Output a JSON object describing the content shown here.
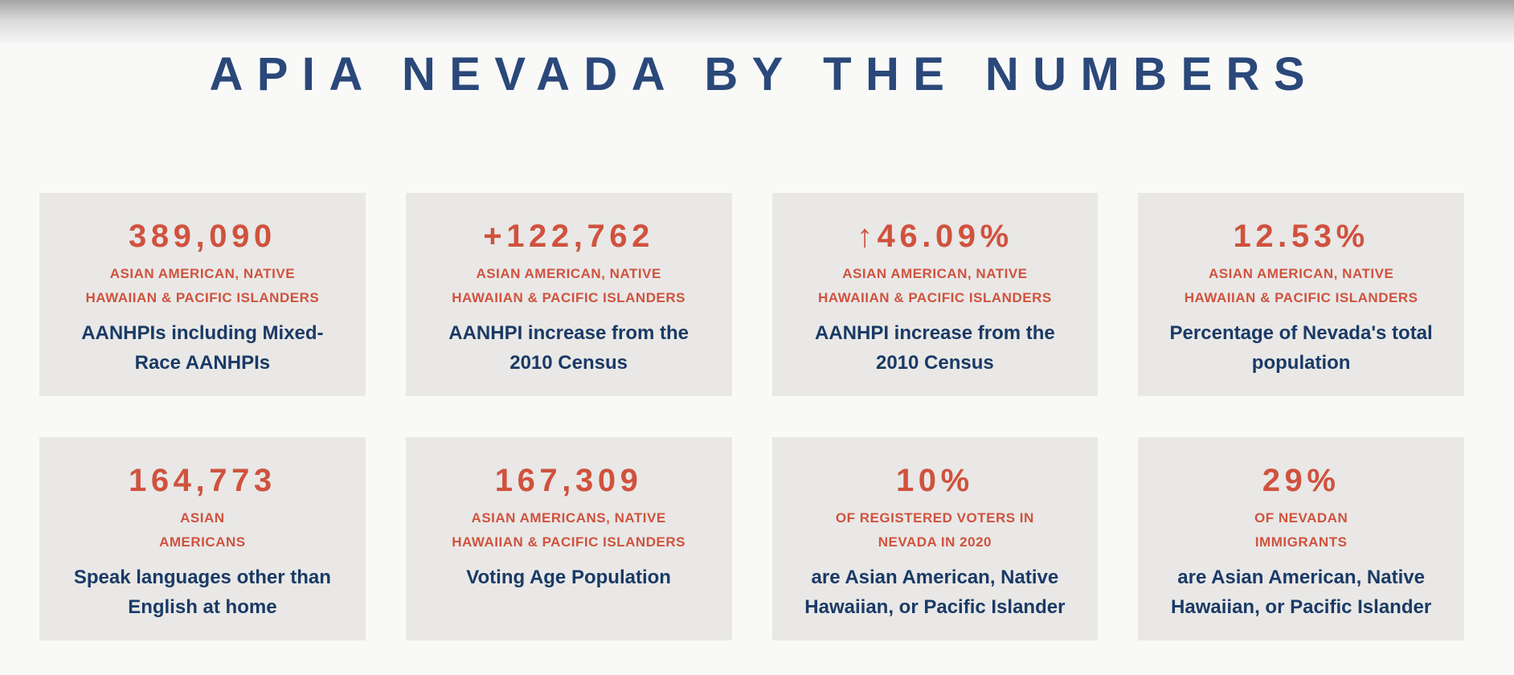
{
  "page": {
    "title": "APIA NEVADA BY THE NUMBERS",
    "colors": {
      "accent_red": "#d0523e",
      "title_blue": "#2a4879",
      "description_navy": "#1a3a66",
      "card_background": "#e9e8e6",
      "page_background": "#f9f9f8"
    }
  },
  "cards": [
    {
      "value": "389,090",
      "label": "ASIAN AMERICAN, NATIVE\nHAWAIIAN & PACIFIC ISLANDERS",
      "description": "AANHPIs including Mixed-\nRace AANHPIs"
    },
    {
      "value": "+122,762",
      "label": "ASIAN AMERICAN, NATIVE\nHAWAIIAN & PACIFIC ISLANDERS",
      "description": "AANHPI increase from the\n2010 Census"
    },
    {
      "value": "↑46.09%",
      "label": "ASIAN AMERICAN, NATIVE\nHAWAIIAN & PACIFIC ISLANDERS",
      "description": "AANHPI increase from the\n2010 Census"
    },
    {
      "value": "12.53%",
      "label": "ASIAN AMERICAN, NATIVE\nHAWAIIAN & PACIFIC ISLANDERS",
      "description": "Percentage of Nevada's total\npopulation"
    },
    {
      "value": "164,773",
      "label": "ASIAN\nAMERICANS",
      "description": "Speak languages other than\nEnglish at home"
    },
    {
      "value": "167,309",
      "label": "ASIAN AMERICANS, NATIVE\nHAWAIIAN & PACIFIC ISLANDERS",
      "description": "Voting Age Population"
    },
    {
      "value": "10%",
      "label": "OF REGISTERED VOTERS IN\nNEVADA IN 2020",
      "description": "are Asian American, Native\nHawaiian, or Pacific Islander"
    },
    {
      "value": "29%",
      "label": "OF NEVADAN\nIMMIGRANTS",
      "description": "are Asian American, Native\nHawaiian, or Pacific Islander"
    }
  ]
}
